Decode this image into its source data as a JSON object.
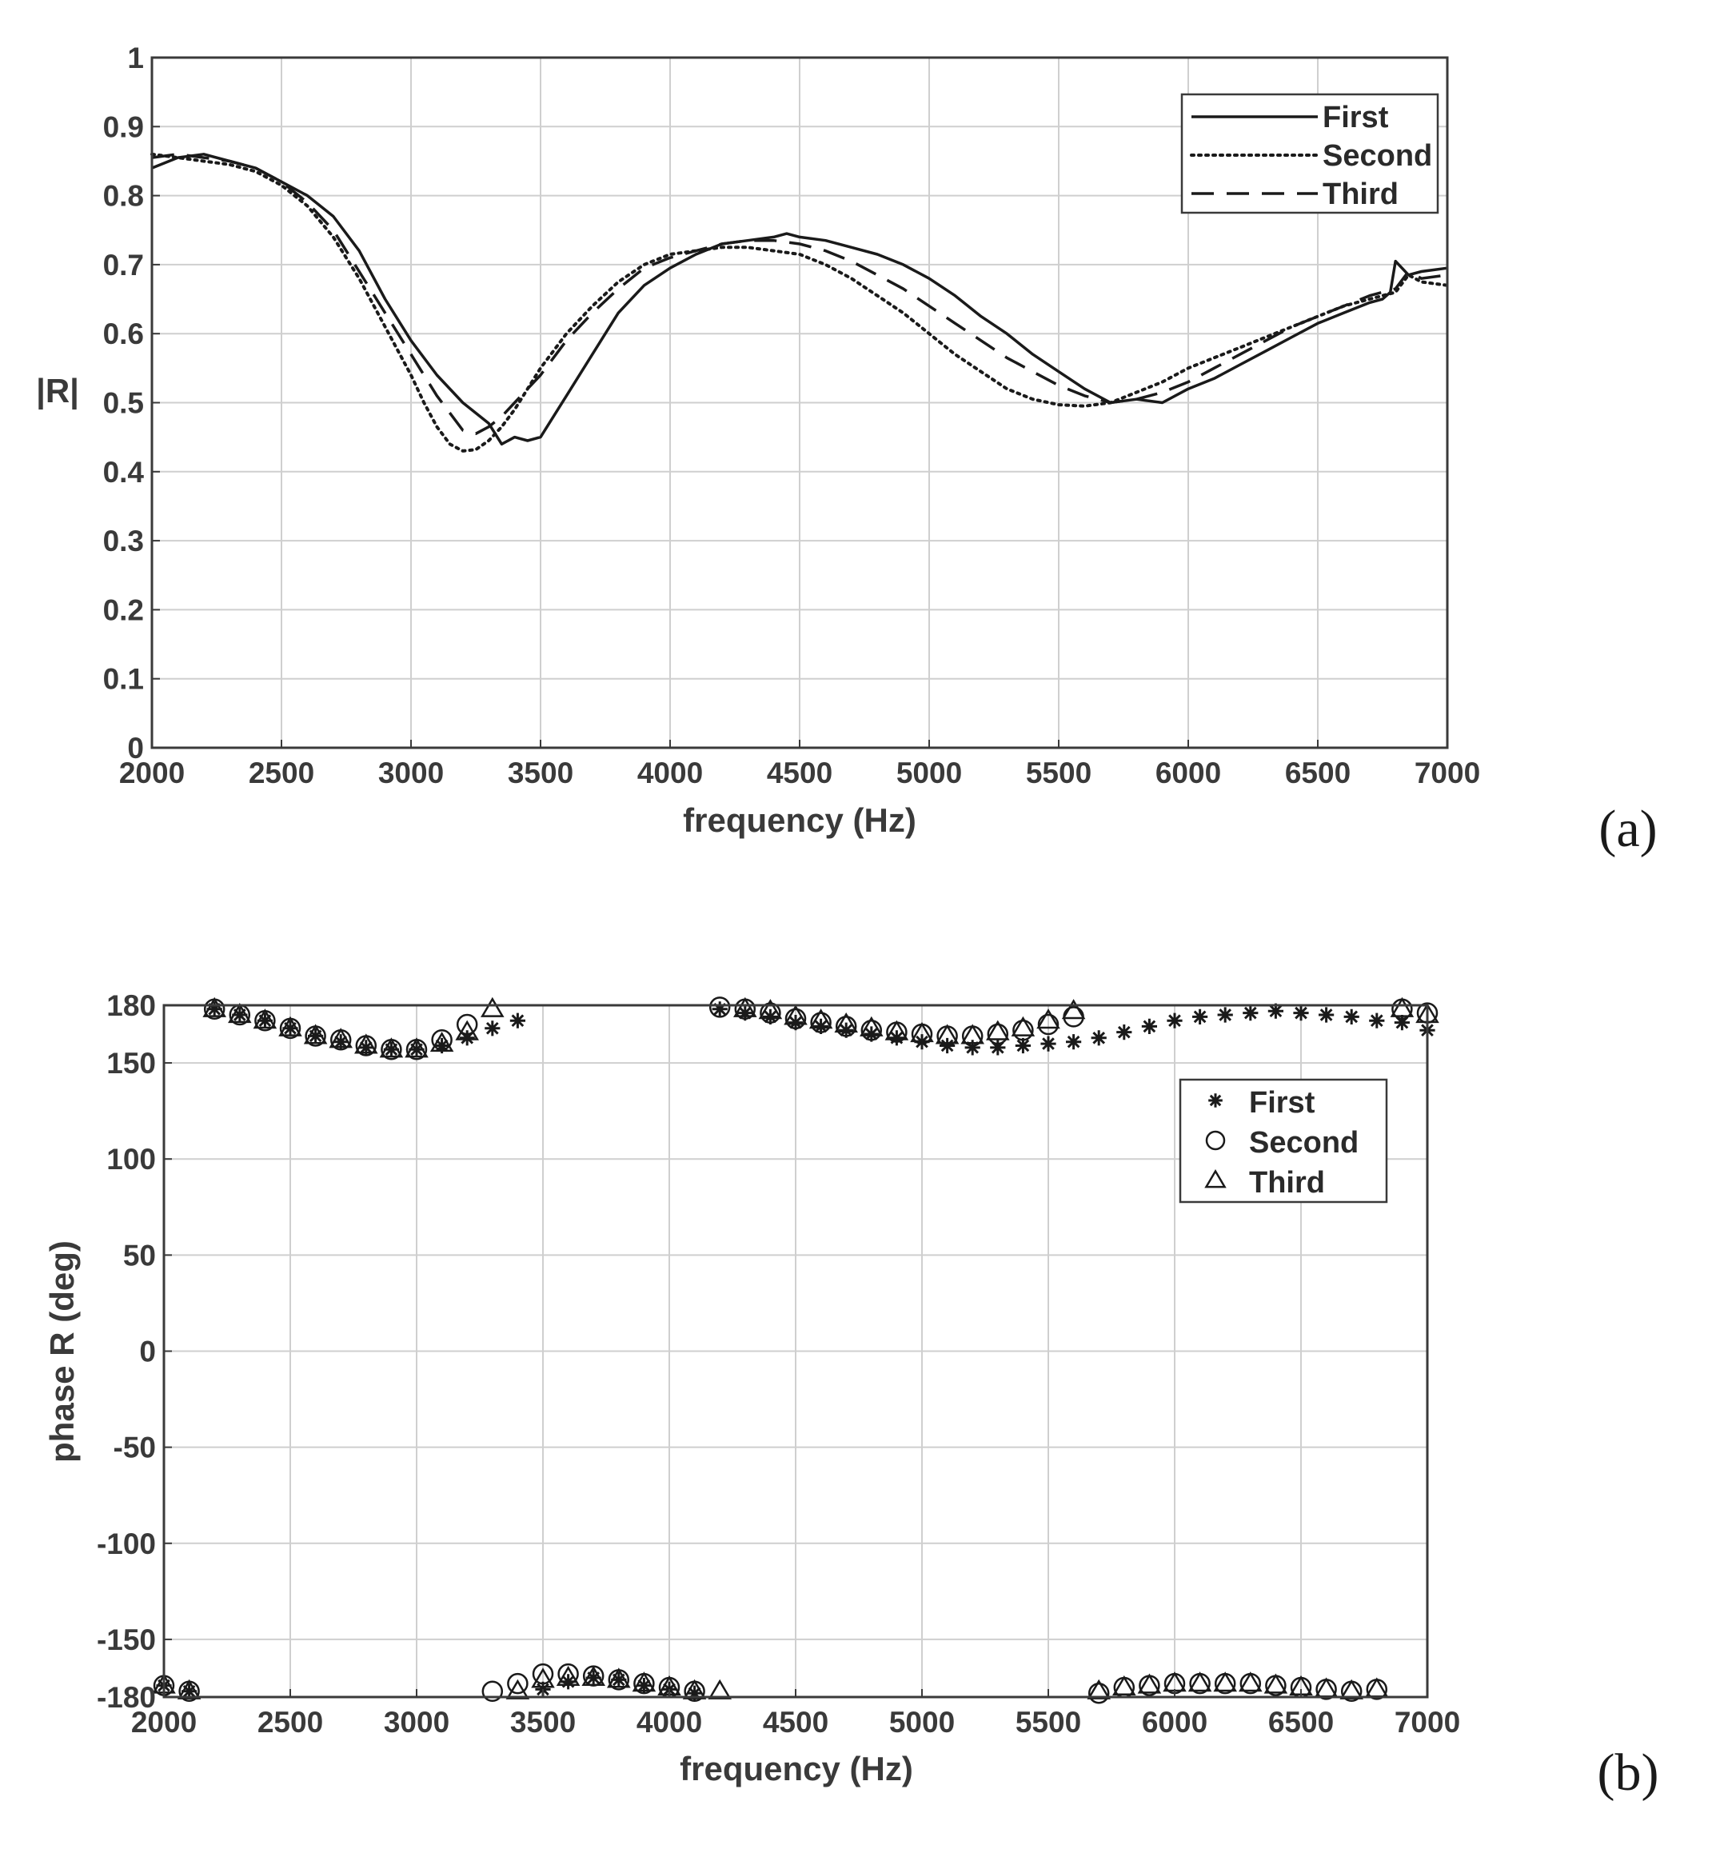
{
  "figure": {
    "panel_a_label": "(a)",
    "panel_b_label": "(b)"
  },
  "chart_data": [
    {
      "id": "a",
      "type": "line",
      "xlabel": "frequency (Hz)",
      "ylabel": "|R|",
      "xlim": [
        2000,
        7000
      ],
      "ylim": [
        0,
        1
      ],
      "xticks": [
        2000,
        2500,
        3000,
        3500,
        4000,
        4500,
        5000,
        5500,
        6000,
        6500,
        7000
      ],
      "yticks": [
        0,
        0.1,
        0.2,
        0.3,
        0.4,
        0.5,
        0.6,
        0.7,
        0.8,
        0.9,
        1
      ],
      "ytick_labels": [
        "0",
        "0.1",
        "0.2",
        "0.3",
        "0.4",
        "0.5",
        "0.6",
        "0.7",
        "0.8",
        "0.9",
        "1"
      ],
      "grid": true,
      "legend_position": "top-right",
      "series": [
        {
          "name": "First",
          "style": "solid",
          "color": "#1a1a1a",
          "x": [
            2000,
            2100,
            2200,
            2300,
            2400,
            2500,
            2600,
            2700,
            2800,
            2900,
            3000,
            3100,
            3200,
            3300,
            3350,
            3400,
            3450,
            3500,
            3600,
            3700,
            3800,
            3900,
            4000,
            4100,
            4200,
            4300,
            4400,
            4450,
            4500,
            4600,
            4700,
            4800,
            4900,
            5000,
            5100,
            5200,
            5300,
            5400,
            5500,
            5600,
            5700,
            5800,
            5900,
            6000,
            6100,
            6200,
            6300,
            6400,
            6500,
            6600,
            6700,
            6750,
            6780,
            6800,
            6850,
            6900,
            7000
          ],
          "values": [
            0.84,
            0.855,
            0.86,
            0.85,
            0.84,
            0.82,
            0.8,
            0.77,
            0.72,
            0.65,
            0.59,
            0.54,
            0.5,
            0.47,
            0.44,
            0.45,
            0.445,
            0.45,
            0.51,
            0.57,
            0.63,
            0.67,
            0.695,
            0.715,
            0.73,
            0.735,
            0.74,
            0.745,
            0.74,
            0.735,
            0.725,
            0.715,
            0.7,
            0.68,
            0.655,
            0.625,
            0.6,
            0.57,
            0.545,
            0.52,
            0.5,
            0.505,
            0.5,
            0.52,
            0.535,
            0.555,
            0.575,
            0.595,
            0.615,
            0.63,
            0.645,
            0.65,
            0.66,
            0.705,
            0.685,
            0.69,
            0.695
          ]
        },
        {
          "name": "Second",
          "style": "dotted",
          "color": "#1a1a1a",
          "x": [
            2000,
            2100,
            2200,
            2300,
            2400,
            2500,
            2600,
            2700,
            2800,
            2900,
            3000,
            3050,
            3100,
            3150,
            3200,
            3250,
            3300,
            3350,
            3400,
            3450,
            3500,
            3600,
            3700,
            3800,
            3900,
            4000,
            4100,
            4200,
            4300,
            4400,
            4500,
            4600,
            4700,
            4800,
            4900,
            5000,
            5100,
            5200,
            5300,
            5400,
            5500,
            5600,
            5700,
            5800,
            5900,
            6000,
            6100,
            6200,
            6300,
            6400,
            6500,
            6600,
            6700,
            6800,
            6850,
            6900,
            7000
          ],
          "values": [
            0.86,
            0.855,
            0.85,
            0.845,
            0.835,
            0.815,
            0.785,
            0.74,
            0.68,
            0.61,
            0.54,
            0.5,
            0.465,
            0.44,
            0.43,
            0.432,
            0.445,
            0.465,
            0.49,
            0.52,
            0.55,
            0.6,
            0.64,
            0.675,
            0.7,
            0.715,
            0.72,
            0.725,
            0.725,
            0.72,
            0.715,
            0.7,
            0.68,
            0.655,
            0.63,
            0.6,
            0.57,
            0.545,
            0.52,
            0.505,
            0.497,
            0.495,
            0.5,
            0.515,
            0.53,
            0.55,
            0.565,
            0.58,
            0.595,
            0.61,
            0.625,
            0.64,
            0.65,
            0.66,
            0.685,
            0.675,
            0.67
          ]
        },
        {
          "name": "Third",
          "style": "dashed",
          "color": "#1a1a1a",
          "x": [
            2000,
            2100,
            2200,
            2300,
            2400,
            2500,
            2600,
            2700,
            2800,
            2900,
            3000,
            3050,
            3100,
            3150,
            3200,
            3250,
            3300,
            3350,
            3400,
            3450,
            3500,
            3600,
            3700,
            3800,
            3900,
            4000,
            4100,
            4200,
            4300,
            4400,
            4500,
            4600,
            4700,
            4800,
            4900,
            5000,
            5100,
            5200,
            5300,
            5400,
            5500,
            5600,
            5700,
            5800,
            5900,
            6000,
            6100,
            6200,
            6300,
            6400,
            6500,
            6600,
            6700,
            6800,
            6850,
            6900,
            7000
          ],
          "values": [
            0.855,
            0.86,
            0.855,
            0.85,
            0.84,
            0.82,
            0.79,
            0.75,
            0.69,
            0.63,
            0.57,
            0.54,
            0.51,
            0.485,
            0.46,
            0.455,
            0.465,
            0.48,
            0.5,
            0.52,
            0.54,
            0.59,
            0.63,
            0.665,
            0.695,
            0.71,
            0.72,
            0.73,
            0.735,
            0.735,
            0.73,
            0.72,
            0.705,
            0.685,
            0.665,
            0.64,
            0.615,
            0.59,
            0.565,
            0.545,
            0.525,
            0.51,
            0.5,
            0.505,
            0.515,
            0.53,
            0.55,
            0.57,
            0.59,
            0.61,
            0.625,
            0.64,
            0.655,
            0.665,
            0.69,
            0.68,
            0.685
          ]
        }
      ]
    },
    {
      "id": "b",
      "type": "scatter",
      "xlabel": "frequency (Hz)",
      "ylabel": "phase R (deg)",
      "xlim": [
        2000,
        7000
      ],
      "ylim": [
        -180,
        180
      ],
      "xticks": [
        2000,
        2500,
        3000,
        3500,
        4000,
        4500,
        5000,
        5500,
        6000,
        6500,
        7000
      ],
      "yticks": [
        -180,
        -150,
        -100,
        -50,
        0,
        50,
        100,
        150,
        180
      ],
      "grid": true,
      "legend_position": "top-right",
      "series": [
        {
          "name": "First",
          "marker": "asterisk",
          "color": "#1a1a1a",
          "x": [
            2000,
            2100,
            2200,
            2300,
            2400,
            2500,
            2600,
            2700,
            2800,
            2900,
            3000,
            3100,
            3200,
            3300,
            3400,
            3500,
            3600,
            3700,
            3800,
            3900,
            4000,
            4100,
            4200,
            4300,
            4400,
            4500,
            4600,
            4700,
            4800,
            4900,
            5000,
            5100,
            5200,
            5300,
            5400,
            5500,
            5600,
            5700,
            5800,
            5900,
            6000,
            6100,
            6200,
            6300,
            6400,
            6500,
            6600,
            6700,
            6800,
            6900,
            7000
          ],
          "values": [
            -174,
            -177,
            178,
            175,
            172,
            168,
            164,
            161,
            158,
            157,
            157,
            159,
            163,
            168,
            172,
            -176,
            -172,
            -170,
            -171,
            -174,
            -176,
            -178,
            178,
            176,
            174,
            171,
            169,
            167,
            165,
            163,
            161,
            159,
            158,
            158,
            159,
            160,
            161,
            163,
            166,
            169,
            172,
            174,
            175,
            176,
            177,
            176,
            175,
            174,
            172,
            171,
            167
          ]
        },
        {
          "name": "Second",
          "marker": "circle",
          "color": "#1a1a1a",
          "x": [
            2000,
            2100,
            2200,
            2300,
            2400,
            2500,
            2600,
            2700,
            2800,
            2900,
            3000,
            3100,
            3200,
            3300,
            3400,
            3500,
            3600,
            3700,
            3800,
            3900,
            4000,
            4100,
            4200,
            4300,
            4400,
            4500,
            4600,
            4700,
            4800,
            4900,
            5000,
            5100,
            5200,
            5300,
            5400,
            5500,
            5600,
            5700,
            5800,
            5900,
            6000,
            6100,
            6200,
            6300,
            6400,
            6500,
            6600,
            6700,
            6800,
            6900,
            7000
          ],
          "values": [
            -174,
            -177,
            178,
            175,
            172,
            168,
            164,
            162,
            159,
            157,
            157,
            162,
            170,
            -177,
            -173,
            -168,
            -168,
            -169,
            -171,
            -173,
            -175,
            -177,
            179,
            178,
            176,
            173,
            171,
            169,
            167,
            166,
            165,
            164,
            164,
            165,
            167,
            170,
            174,
            -178,
            -175,
            -174,
            -173,
            -173,
            -173,
            -173,
            -174,
            -175,
            -176,
            -177,
            -176,
            178,
            176
          ]
        },
        {
          "name": "Third",
          "marker": "triangle",
          "color": "#1a1a1a",
          "x": [
            2000,
            2100,
            2200,
            2300,
            2400,
            2500,
            2600,
            2700,
            2800,
            2900,
            3000,
            3100,
            3200,
            3300,
            3400,
            3500,
            3600,
            3700,
            3800,
            3900,
            4000,
            4100,
            4200,
            4300,
            4400,
            4500,
            4600,
            4700,
            4800,
            4900,
            5000,
            5100,
            5200,
            5300,
            5400,
            5500,
            5600,
            5700,
            5800,
            5900,
            6000,
            6100,
            6200,
            6300,
            6400,
            6500,
            6600,
            6700,
            6800,
            6900,
            7000
          ],
          "values": [
            -174,
            -177,
            178,
            175,
            172,
            168,
            164,
            162,
            159,
            157,
            157,
            160,
            166,
            178,
            -177,
            -171,
            -170,
            -170,
            -171,
            -173,
            -175,
            -177,
            -177,
            178,
            177,
            174,
            172,
            170,
            168,
            166,
            165,
            164,
            164,
            166,
            168,
            172,
            177,
            -177,
            -175,
            -174,
            -173,
            -173,
            -173,
            -173,
            -174,
            -175,
            -176,
            -177,
            -176,
            178,
            175
          ]
        }
      ]
    }
  ]
}
